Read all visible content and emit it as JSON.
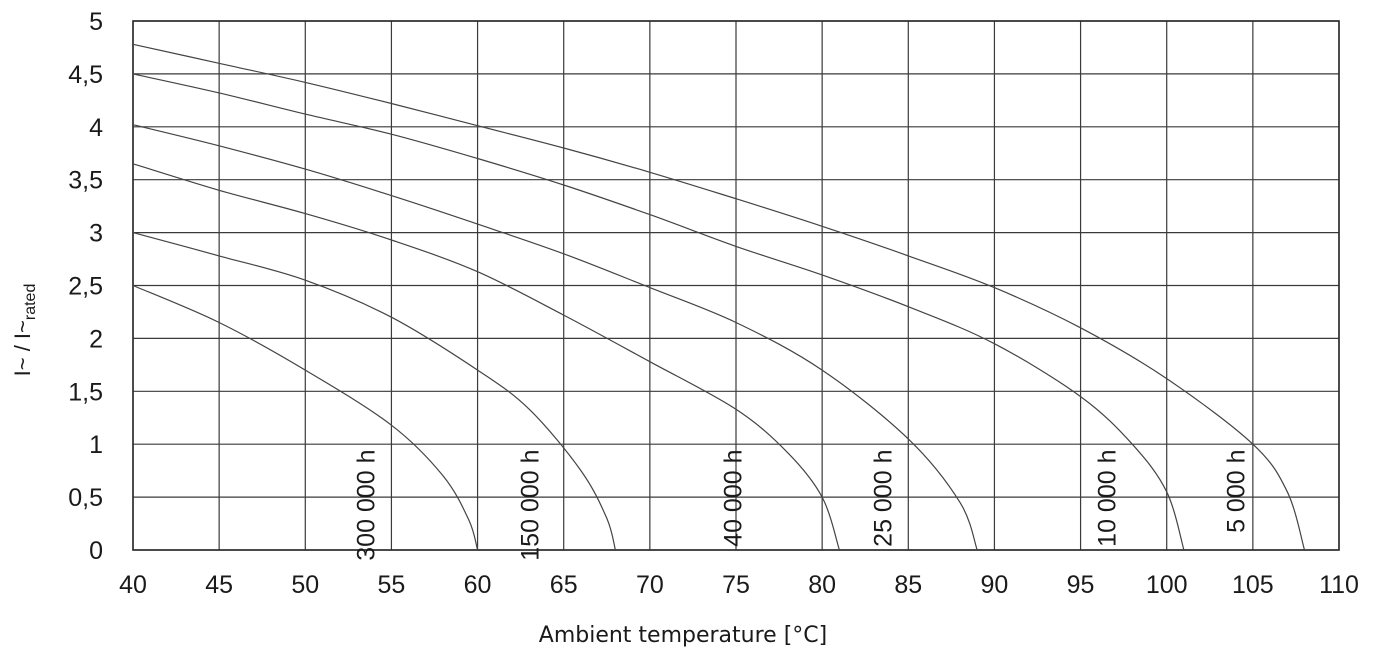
{
  "chart_data": {
    "type": "line",
    "xlabel": "Ambient temperature [°C]",
    "ylabel": {
      "main": "I~ / I~",
      "sub": "rated"
    },
    "xlim": [
      40,
      110
    ],
    "ylim": [
      0,
      5
    ],
    "x_ticks": [
      40,
      45,
      50,
      55,
      60,
      65,
      70,
      75,
      80,
      85,
      90,
      95,
      100,
      105,
      110
    ],
    "x_tick_labels": [
      "40",
      "45",
      "50",
      "55",
      "60",
      "65",
      "70",
      "75",
      "80",
      "85",
      "90",
      "95",
      "100",
      "105",
      "110"
    ],
    "y_ticks": [
      0,
      0.5,
      1,
      1.5,
      2,
      2.5,
      3,
      3.5,
      4,
      4.5,
      5
    ],
    "y_tick_labels": [
      "0",
      "0,5",
      "1",
      "1,5",
      "2",
      "2,5",
      "3",
      "3,5",
      "4",
      "4,5",
      "5"
    ],
    "grid": true,
    "series": [
      {
        "name": "300 000 h",
        "label_x": 53.5,
        "label_y": 0.95,
        "x": [
          40,
          45,
          50,
          55,
          58,
          59.5,
          60
        ],
        "y": [
          2.5,
          2.15,
          1.7,
          1.18,
          0.7,
          0.28,
          0
        ]
      },
      {
        "name": "150 000 h",
        "label_x": 63,
        "label_y": 0.95,
        "x": [
          40,
          45,
          50,
          55,
          60,
          63,
          66,
          67.5,
          68
        ],
        "y": [
          3.0,
          2.78,
          2.55,
          2.2,
          1.7,
          1.33,
          0.75,
          0.3,
          0
        ]
      },
      {
        "name": "40 000 h",
        "label_x": 74.8,
        "label_y": 0.95,
        "x": [
          40,
          45,
          50,
          55,
          60,
          65,
          70,
          75,
          78,
          80,
          81
        ],
        "y": [
          3.65,
          3.4,
          3.18,
          2.93,
          2.63,
          2.22,
          1.78,
          1.33,
          0.92,
          0.5,
          0
        ]
      },
      {
        "name": "25 000 h",
        "label_x": 83.5,
        "label_y": 0.95,
        "x": [
          40,
          45,
          50,
          55,
          60,
          65,
          70,
          75,
          80,
          85,
          88,
          89
        ],
        "y": [
          4.02,
          3.82,
          3.6,
          3.35,
          3.08,
          2.8,
          2.48,
          2.15,
          1.7,
          1.05,
          0.45,
          0
        ]
      },
      {
        "name": "10 000 h",
        "label_x": 96.5,
        "label_y": 0.95,
        "x": [
          40,
          45,
          50,
          55,
          60,
          65,
          70,
          75,
          80,
          85,
          90,
          95,
          98,
          100,
          101
        ],
        "y": [
          4.5,
          4.32,
          4.12,
          3.93,
          3.7,
          3.45,
          3.17,
          2.87,
          2.6,
          2.3,
          1.95,
          1.45,
          1.0,
          0.55,
          0
        ]
      },
      {
        "name": "5 000 h",
        "label_x": 104,
        "label_y": 0.95,
        "x": [
          40,
          45,
          50,
          55,
          60,
          65,
          70,
          75,
          80,
          85,
          90,
          95,
          100,
          105,
          107,
          108
        ],
        "y": [
          4.78,
          4.6,
          4.42,
          4.22,
          4.01,
          3.8,
          3.57,
          3.32,
          3.06,
          2.78,
          2.48,
          2.1,
          1.62,
          1.0,
          0.55,
          0
        ]
      }
    ]
  }
}
